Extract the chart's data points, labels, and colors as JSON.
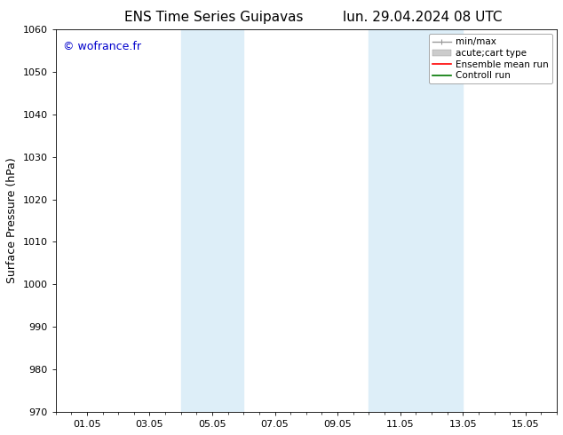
{
  "title_left": "ENS Time Series Guipavas",
  "title_right": "lun. 29.04.2024 08 UTC",
  "ylabel": "Surface Pressure (hPa)",
  "ylim": [
    970,
    1060
  ],
  "yticks": [
    970,
    980,
    990,
    1000,
    1010,
    1020,
    1030,
    1040,
    1050,
    1060
  ],
  "xlim": [
    0,
    16
  ],
  "xtick_positions": [
    1,
    3,
    5,
    7,
    9,
    11,
    13,
    15
  ],
  "xtick_labels": [
    "01.05",
    "03.05",
    "05.05",
    "07.05",
    "09.05",
    "11.05",
    "13.05",
    "15.05"
  ],
  "watermark": "© wofrance.fr",
  "watermark_color": "#0000cc",
  "bg_color": "#ffffff",
  "plot_bg_color": "#ffffff",
  "shaded_bands": [
    {
      "xmin": 4.0,
      "xmax": 6.0,
      "color": "#ddeef8"
    },
    {
      "xmin": 10.0,
      "xmax": 13.0,
      "color": "#ddeef8"
    }
  ],
  "legend_entries": [
    {
      "label": "min/max",
      "color": "#999999",
      "lw": 1,
      "ls": "-"
    },
    {
      "label": "acute;cart type",
      "color": "#cccccc",
      "lw": 5,
      "ls": "-"
    },
    {
      "label": "Ensemble mean run",
      "color": "#ff0000",
      "lw": 1.2,
      "ls": "-"
    },
    {
      "label": "Controll run",
      "color": "#007700",
      "lw": 1.2,
      "ls": "-"
    }
  ],
  "title_fontsize": 11,
  "label_fontsize": 9,
  "tick_fontsize": 8,
  "legend_fontsize": 7.5,
  "watermark_fontsize": 9
}
